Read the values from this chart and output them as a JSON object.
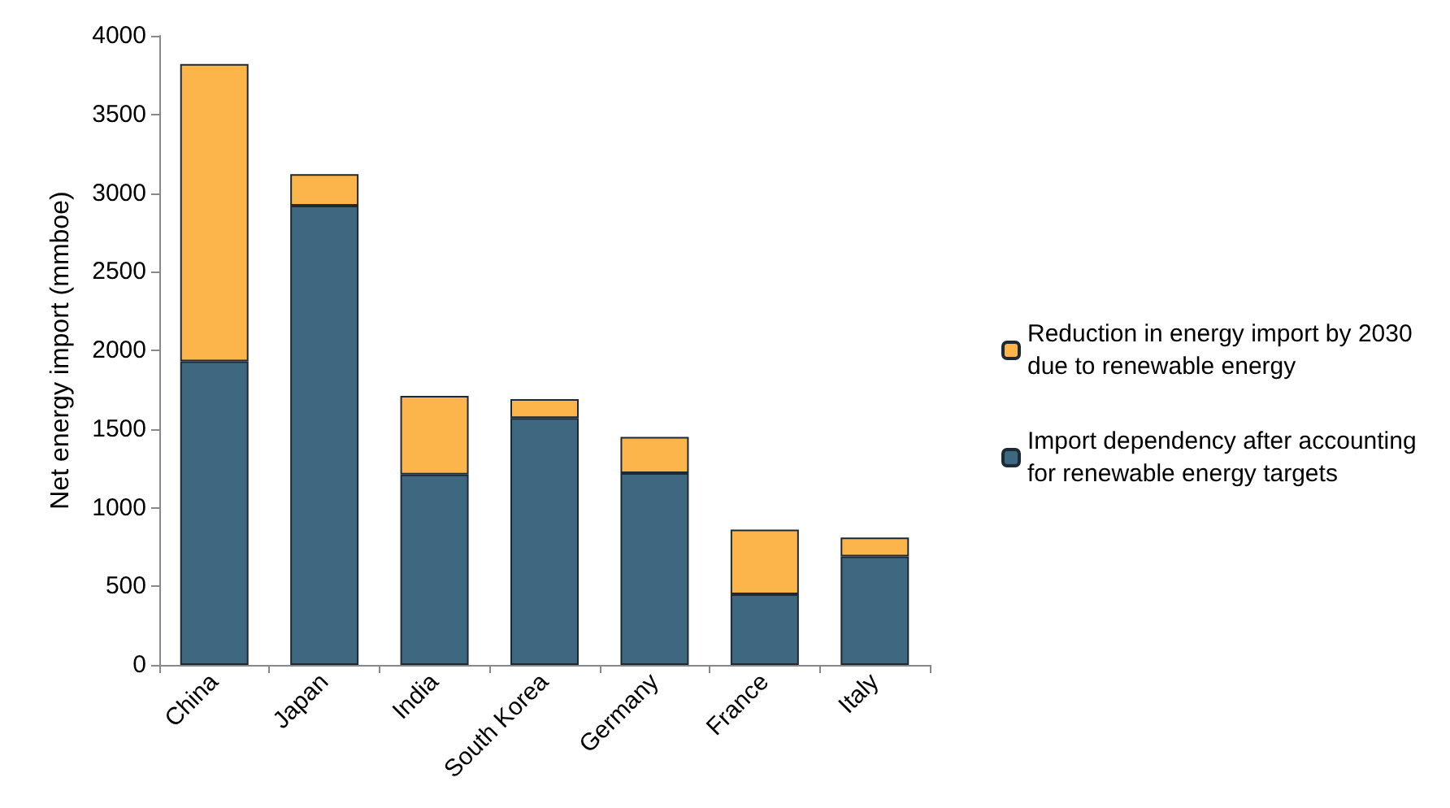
{
  "chart_data": {
    "type": "bar",
    "stacked": true,
    "ylabel": "Net energy import (mmboe)",
    "categories": [
      "China",
      "Japan",
      "India",
      "South Korea",
      "Germany",
      "France",
      "Italy"
    ],
    "series": [
      {
        "name": "Import dependency after accounting for renewable energy targets",
        "color": "#3e6780",
        "values": [
          1930,
          2920,
          1210,
          1570,
          1220,
          450,
          690
        ]
      },
      {
        "name": "Reduction in energy import by 2030 due to renewable energy",
        "color": "#fbb54a",
        "values": [
          1890,
          200,
          500,
          120,
          230,
          410,
          120
        ]
      }
    ],
    "ylim": [
      0,
      4000
    ],
    "yticks": [
      0,
      500,
      1000,
      1500,
      2000,
      2500,
      3000,
      3500,
      4000
    ],
    "grid": false,
    "legend": "right"
  }
}
